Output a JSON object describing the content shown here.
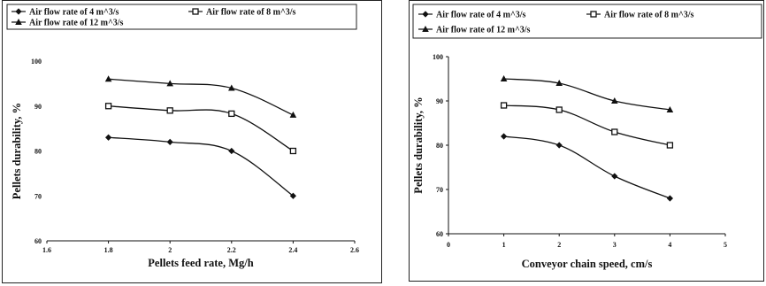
{
  "chart_data": [
    {
      "type": "line",
      "title": "",
      "xlabel": "Pellets feed rate, Mg/h",
      "ylabel": "Pellets durability, %",
      "xlim": [
        1.6,
        2.6
      ],
      "ylim": [
        60,
        100
      ],
      "x_ticks": [
        "1.6",
        "1.8",
        "2",
        "2.2",
        "2.4",
        "2.6"
      ],
      "y_ticks": [
        "60",
        "70",
        "80",
        "90",
        "100"
      ],
      "x": [
        1.8,
        2.0,
        2.2,
        2.4
      ],
      "series": [
        {
          "name": "Air flow rate of 4 m^3/s",
          "marker": "diamond",
          "values": [
            83,
            82,
            80,
            70
          ]
        },
        {
          "name": "Air flow rate of 8 m^3/s",
          "marker": "square",
          "values": [
            90,
            89,
            88.3,
            80
          ]
        },
        {
          "name": "Air flow rate of 12 m^3/s",
          "marker": "triangle",
          "values": [
            96,
            95,
            94,
            88
          ]
        }
      ],
      "legend": "top",
      "grid": false
    },
    {
      "type": "line",
      "title": "",
      "xlabel": "Conveyor chain speed, cm/s",
      "ylabel": "Pellets durability, %",
      "xlim": [
        0,
        5
      ],
      "ylim": [
        60,
        100
      ],
      "x_ticks": [
        "0",
        "1",
        "2",
        "3",
        "4",
        "5"
      ],
      "y_ticks": [
        "60",
        "70",
        "80",
        "90",
        "100"
      ],
      "x": [
        1,
        2,
        3,
        4
      ],
      "series": [
        {
          "name": "Air flow rate of 4 m^3/s",
          "marker": "diamond",
          "values": [
            82,
            80,
            73,
            68
          ]
        },
        {
          "name": "Air flow rate of 8 m^3/s",
          "marker": "square",
          "values": [
            89,
            88,
            83,
            80
          ]
        },
        {
          "name": "Air flow rate of 12 m^3/s",
          "marker": "triangle",
          "values": [
            95,
            94,
            90,
            88
          ]
        }
      ],
      "legend": "top",
      "grid": false
    }
  ]
}
